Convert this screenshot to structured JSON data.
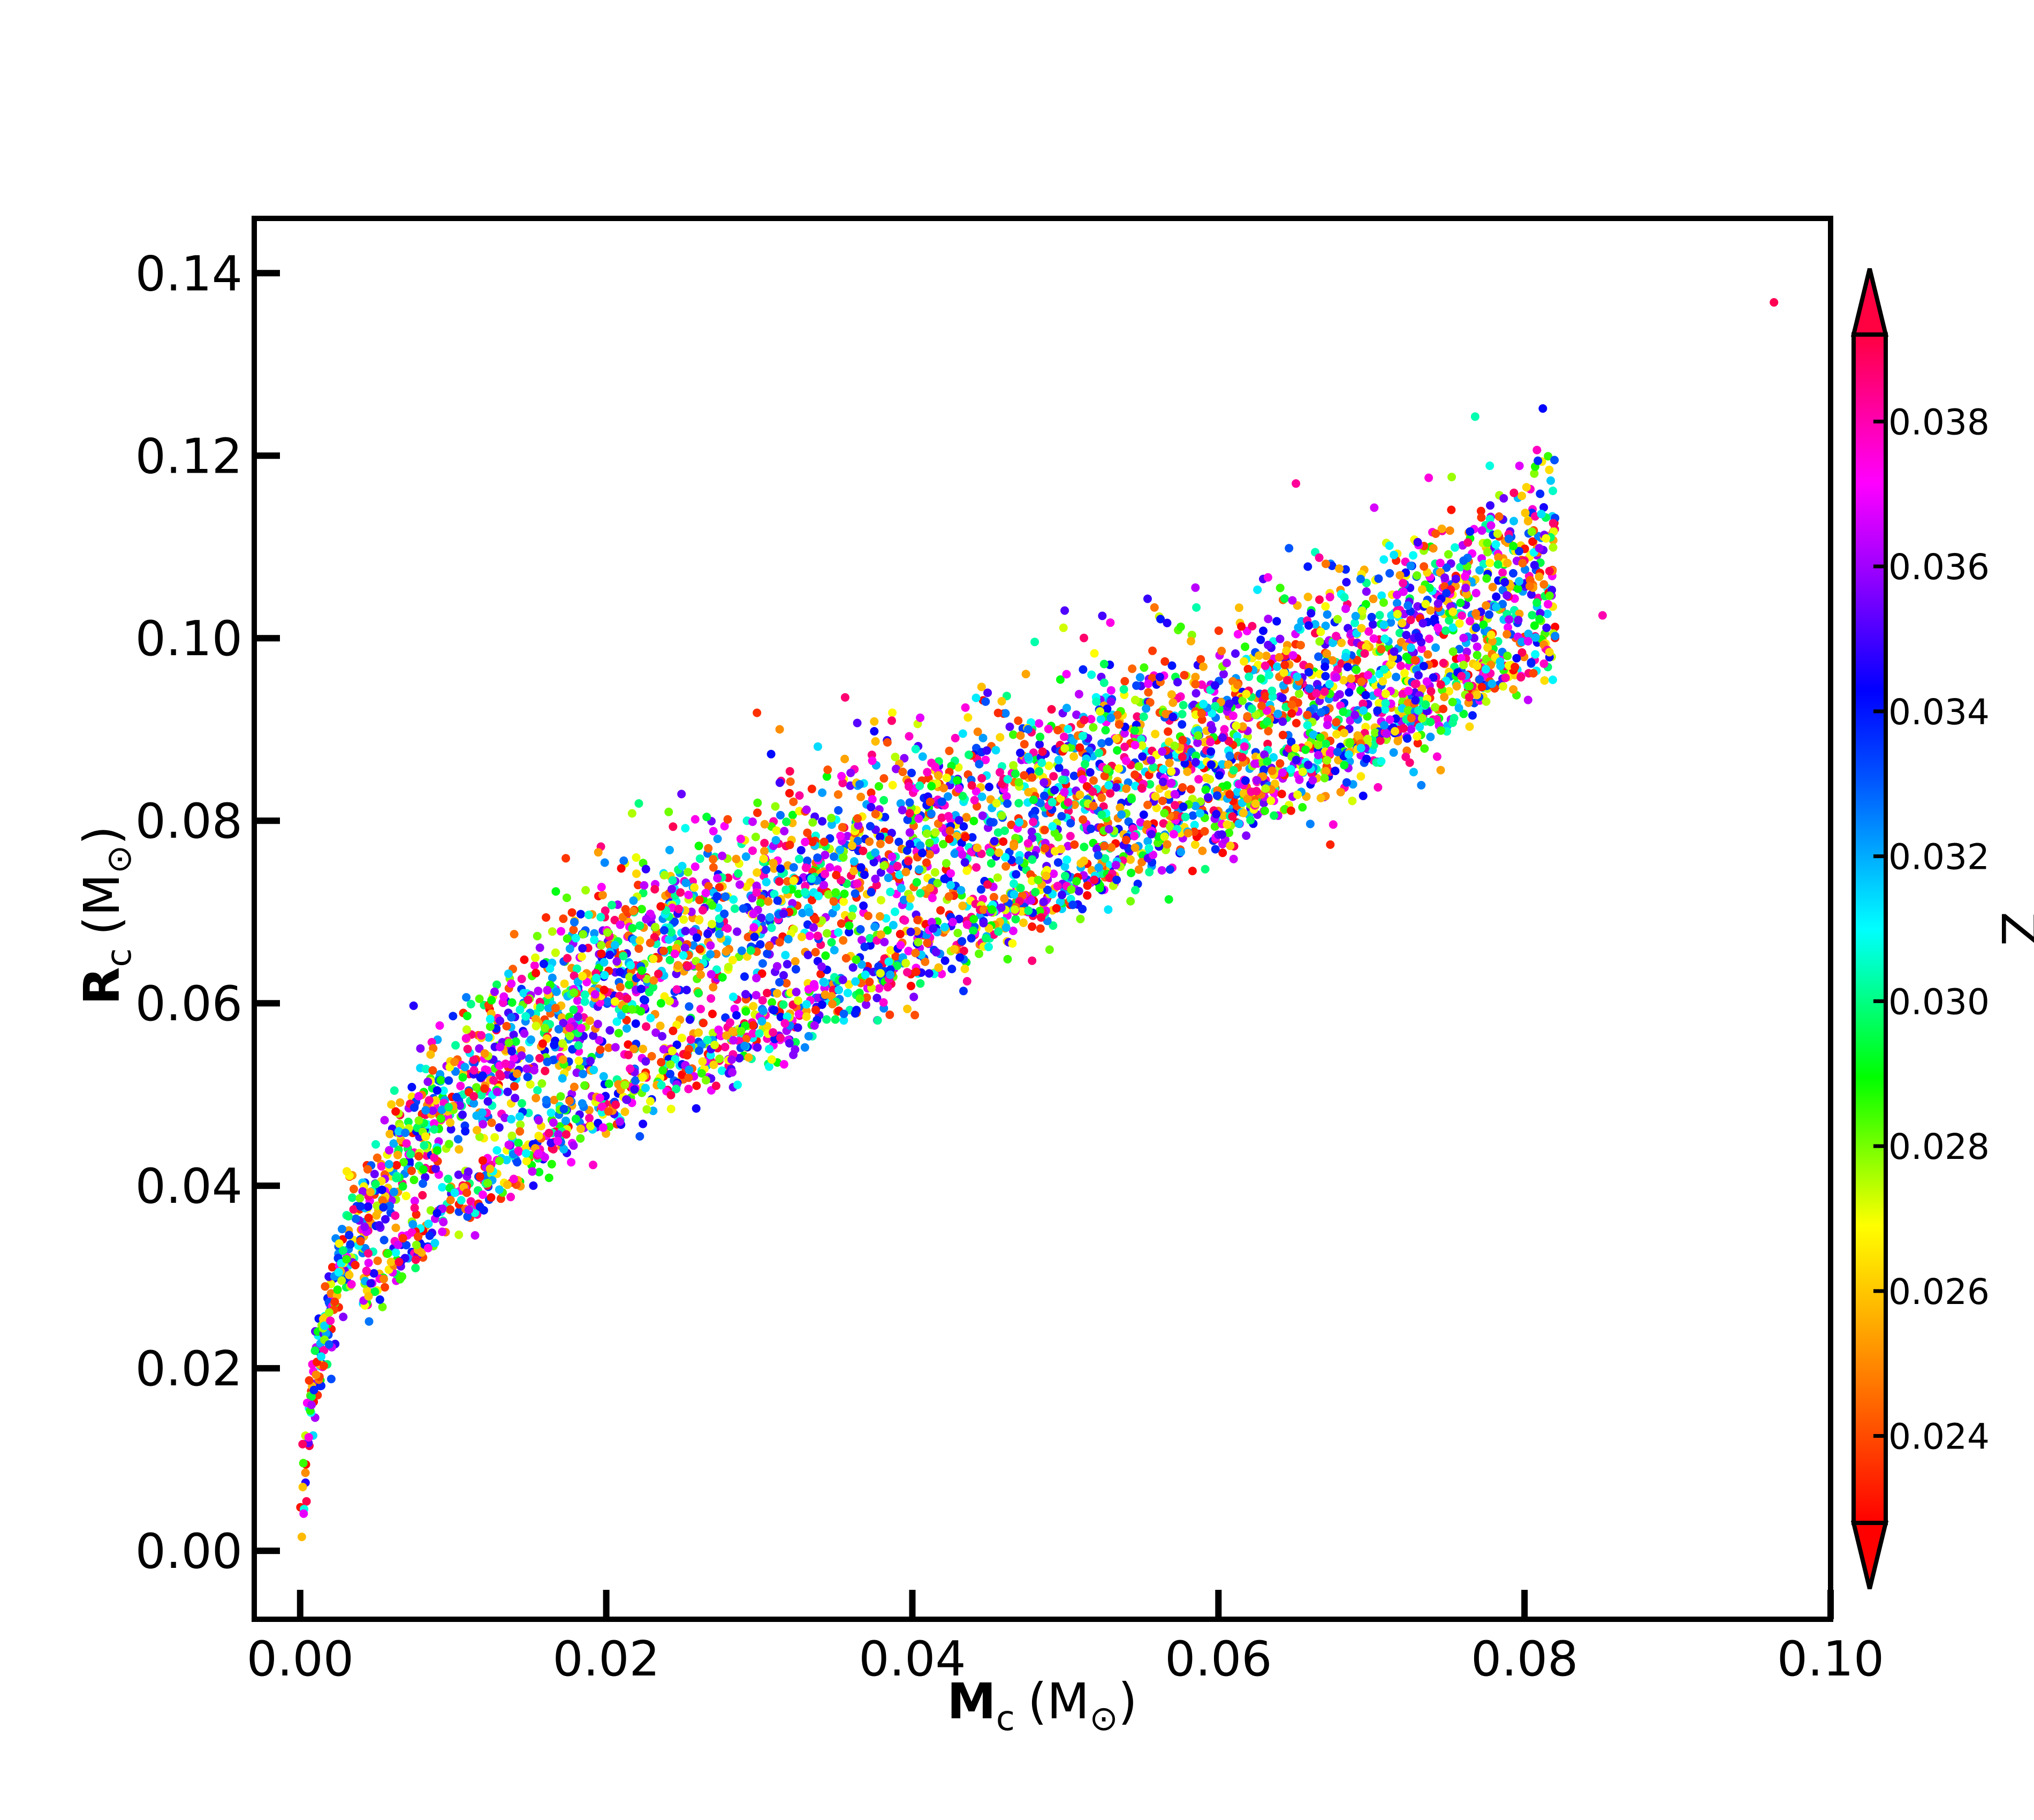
{
  "chart_data": {
    "type": "scatter",
    "title": "",
    "xlabel": {
      "main": "M",
      "sub": "c",
      "unit_open": "(M",
      "unit_sub": "⊙",
      "unit_close": ")"
    },
    "ylabel": {
      "main": "R",
      "sub": "c",
      "unit_open": "(M",
      "unit_sub": "⊙",
      "unit_close": ")"
    },
    "xlim": [
      -0.003,
      0.1
    ],
    "ylim": [
      -0.0075,
      0.146
    ],
    "x_ticks": [
      "0.00",
      "0.02",
      "0.04",
      "0.06",
      "0.08",
      "0.10"
    ],
    "y_ticks": [
      "0.00",
      "0.02",
      "0.04",
      "0.06",
      "0.08",
      "0.10",
      "0.12",
      "0.14"
    ],
    "grid": false,
    "colorbar": {
      "label": "Z",
      "range": [
        0.0228,
        0.0392
      ],
      "extend": "both",
      "colormap": "hsv-reversed (red→orange→yellow→green→cyan→blue→purple→magenta→red)",
      "ticks": [
        "0.024",
        "0.026",
        "0.028",
        "0.030",
        "0.032",
        "0.034",
        "0.036",
        "0.038"
      ]
    },
    "series": [
      {
        "description": "stellar models, color-coded by metallicity Z",
        "point_color_by": "Z",
        "bands": [
          {
            "x": [
              0.0,
              0.001,
              0.003,
              0.006,
              0.01,
              0.015,
              0.02,
              0.03,
              0.04,
              0.05,
              0.06,
              0.07,
              0.075,
              0.08,
              0.082
            ],
            "y": [
              0.002,
              0.02,
              0.033,
              0.042,
              0.05,
              0.057,
              0.063,
              0.071,
              0.078,
              0.084,
              0.09,
              0.098,
              0.103,
              0.108,
              0.111
            ],
            "spread": 0.005
          },
          {
            "x": [
              0.004,
              0.01,
              0.015,
              0.02,
              0.03,
              0.04,
              0.05,
              0.06,
              0.07,
              0.075,
              0.08,
              0.082
            ],
            "y": [
              0.028,
              0.038,
              0.044,
              0.049,
              0.057,
              0.065,
              0.073,
              0.081,
              0.089,
              0.094,
              0.098,
              0.1
            ],
            "spread": 0.002
          }
        ],
        "points_estimated_count": 5000
      }
    ],
    "outliers": [
      {
        "x": 0.0963,
        "y": 0.1368,
        "z": 0.039
      },
      {
        "x": 0.0851,
        "y": 0.1025,
        "z": 0.038
      }
    ],
    "x_range_data": [
      0.0,
      0.085
    ],
    "y_range_data": [
      0.001,
      0.116
    ]
  }
}
